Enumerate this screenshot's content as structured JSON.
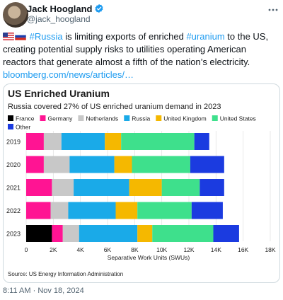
{
  "author": {
    "display_name": "Jack Hoogland",
    "handle": "@jack_hoogland"
  },
  "icons": {
    "verified": "verified-badge-icon",
    "more": "more-options-icon",
    "flag_us": "us-flag-icon",
    "flag_ru": "russia-flag-icon"
  },
  "tweet": {
    "hashtag_russia": "#Russia",
    "text_part1": " is limiting exports of enriched ",
    "hashtag_uranium": "#uranium",
    "text_part2": " to the US, creating potential supply risks to utilities operating American reactors that generate almost a fifth of the nation’s electricity.",
    "link": "bloomberg.com/news/articles/…",
    "timestamp": "8:11 AM · Nov 18, 2024"
  },
  "colors": {
    "accent": "#1d9bf0",
    "France": "#000000",
    "Germany": "#ff1493",
    "Netherlands": "#c8c8c8",
    "Russia": "#1aaae8",
    "United Kingdom": "#f5b800",
    "United States": "#3ee08c",
    "Other": "#1b3be0"
  },
  "chart_data": {
    "type": "bar",
    "orientation": "horizontal",
    "stacked": true,
    "title": "US Enriched Uranium",
    "subtitle": "Russia covered 27% of US enriched uranium demand in 2023",
    "xlabel": "Separative Work Units (SWUs)",
    "source": "Source: US Energy Information Administration",
    "legend_position": "top",
    "xlim": [
      0,
      18000
    ],
    "xticks": [
      "0",
      "2K",
      "4K",
      "6K",
      "8K",
      "10K",
      "12K",
      "14K",
      "16K",
      "18K"
    ],
    "categories": [
      "2019",
      "2020",
      "2021",
      "2022",
      "2023"
    ],
    "series": [
      {
        "name": "France",
        "values": [
          0,
          0,
          0,
          0,
          1900
        ]
      },
      {
        "name": "Germany",
        "values": [
          1300,
          1300,
          1900,
          1800,
          800
        ]
      },
      {
        "name": "Netherlands",
        "values": [
          1300,
          1900,
          1600,
          1300,
          1200
        ]
      },
      {
        "name": "Russia",
        "values": [
          3200,
          3300,
          4100,
          3500,
          4300
        ]
      },
      {
        "name": "United Kingdom",
        "values": [
          1200,
          1300,
          2400,
          1600,
          1100
        ]
      },
      {
        "name": "United States",
        "values": [
          5400,
          4300,
          2800,
          4000,
          4500
        ]
      },
      {
        "name": "Other",
        "values": [
          1100,
          2500,
          1800,
          2300,
          1900
        ]
      }
    ]
  }
}
